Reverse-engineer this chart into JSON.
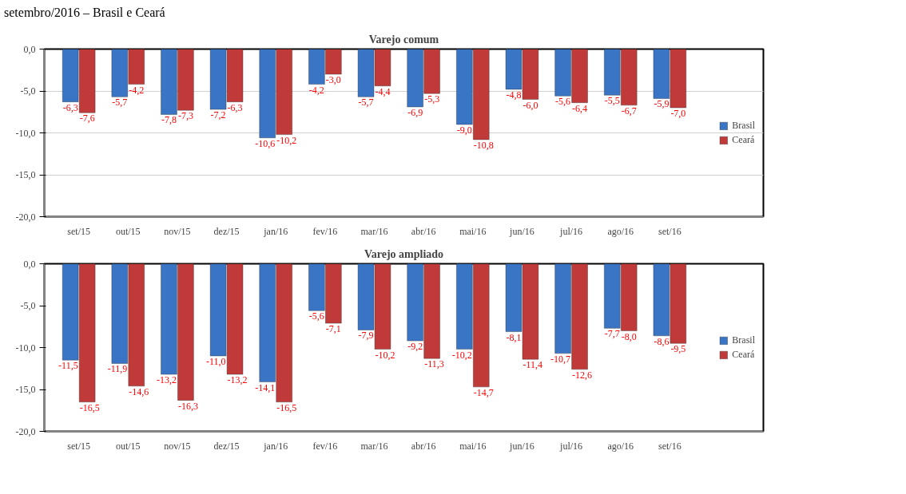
{
  "chart_data": [
    {
      "type": "bar",
      "title": "Varejo comum",
      "annotations": [
        "setembro/2016 – Brasil e Ceará"
      ],
      "categories": [
        "set/15",
        "out/15",
        "nov/15",
        "dez/15",
        "jan/16",
        "fev/16",
        "mar/16",
        "abr/16",
        "mai/16",
        "jun/16",
        "jul/16",
        "ago/16",
        "set/16"
      ],
      "series": [
        {
          "name": "Brasil",
          "color": "#3a74c4",
          "values": [
            -6.3,
            -5.7,
            -7.8,
            -7.2,
            -10.6,
            -4.2,
            -5.7,
            -6.9,
            -9.0,
            -4.8,
            -5.6,
            -5.5,
            -5.9
          ],
          "value_labels": [
            "-6,3",
            "-5,7",
            "-7,8",
            "-7,2",
            "-10,6",
            "-4,2",
            "-5,7",
            "-6,9",
            "-9,0",
            "-4,8",
            "-5,6",
            "-5,5",
            "-5,9"
          ]
        },
        {
          "name": "Ceará",
          "color": "#c03a3a",
          "values": [
            -7.6,
            -4.2,
            -7.3,
            -6.3,
            -10.2,
            -3.0,
            -4.4,
            -5.3,
            -10.8,
            -6.0,
            -6.4,
            -6.7,
            -7.0
          ],
          "value_labels": [
            "-7,6",
            "-4,2",
            "-7,3",
            "-6,3",
            "-10,2",
            "-3,0",
            "-4,4",
            "-5,3",
            "-10,8",
            "-6,0",
            "-6,4",
            "-6,7",
            "-7,0"
          ]
        }
      ],
      "ylim": [
        -20,
        0
      ],
      "yticks": [
        {
          "value": 0,
          "label": "0,0"
        },
        {
          "value": -5,
          "label": "-5,0"
        },
        {
          "value": -10,
          "label": "-10,0"
        },
        {
          "value": -15,
          "label": "-15,0"
        },
        {
          "value": -20,
          "label": "-20,0"
        }
      ],
      "grid": "y",
      "legend": "right"
    },
    {
      "type": "bar",
      "title": "Varejo ampliado",
      "categories": [
        "set/15",
        "out/15",
        "nov/15",
        "dez/15",
        "jan/16",
        "fev/16",
        "mar/16",
        "abr/16",
        "mai/16",
        "jun/16",
        "jul/16",
        "ago/16",
        "set/16"
      ],
      "series": [
        {
          "name": "Brasil",
          "color": "#3a74c4",
          "values": [
            -11.5,
            -11.9,
            -13.2,
            -11.0,
            -14.1,
            -5.6,
            -7.9,
            -9.2,
            -10.2,
            -8.1,
            -10.7,
            -7.7,
            -8.6
          ],
          "value_labels": [
            "-11,5",
            "-11,9",
            "-13,2",
            "-11,0",
            "-14,1",
            "-5,6",
            "-7,9",
            "-9,2",
            "-10,2",
            "-8,1",
            "-10,7",
            "-7,7",
            "-8,6"
          ]
        },
        {
          "name": "Ceará",
          "color": "#c03a3a",
          "values": [
            -16.5,
            -14.6,
            -16.3,
            -13.2,
            -16.5,
            -7.1,
            -10.2,
            -11.3,
            -14.7,
            -11.4,
            -12.6,
            -8.0,
            -9.5
          ],
          "value_labels": [
            "-16,5",
            "-14,6",
            "-16,3",
            "-13,2",
            "-16,5",
            "-7,1",
            "-10,2",
            "-11,3",
            "-14,7",
            "-11,4",
            "-12,6",
            "-8,0",
            "-9,5"
          ]
        }
      ],
      "ylim": [
        -20,
        0
      ],
      "yticks": [
        {
          "value": 0,
          "label": "0,0"
        },
        {
          "value": -5,
          "label": "-5,0"
        },
        {
          "value": -10,
          "label": "-10,0"
        },
        {
          "value": -15,
          "label": "-15,0"
        },
        {
          "value": -20,
          "label": "-20,0"
        }
      ],
      "grid": false,
      "legend": "right"
    }
  ]
}
